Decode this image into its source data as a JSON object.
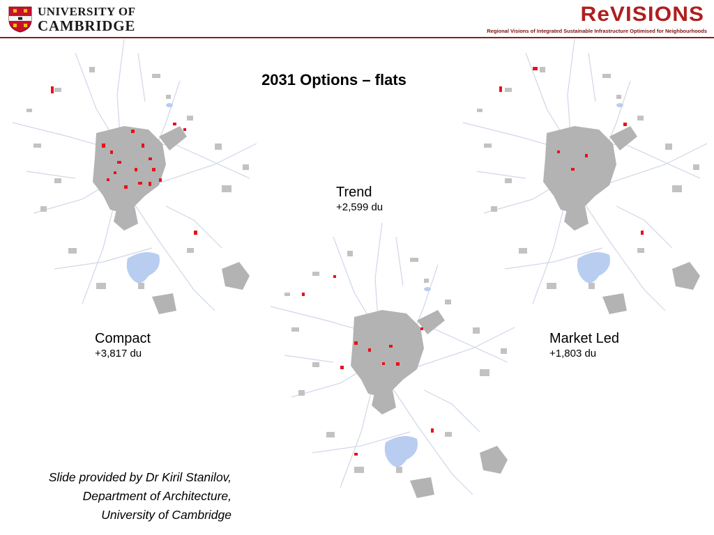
{
  "header": {
    "university_line1": "UNIVERSITY OF",
    "university_line2": "CAMBRIDGE",
    "project_logo": "ReVISIONS",
    "project_tagline": "Regional Visions of Integrated Sustainable Infrastructure Optimised for Neighbourhoods",
    "accent_color": "#8b1a1a"
  },
  "title": "2031 Options – flats",
  "maps": [
    {
      "name": "Compact",
      "value": "+3,817 du"
    },
    {
      "name": "Trend",
      "value": "+2,599 du"
    },
    {
      "name": "Market Led",
      "value": "+1,803 du"
    }
  ],
  "credit": {
    "line1": "Slide provided by Dr Kiril Stanilov,",
    "line2": "Department of Architecture,",
    "line3": "University of Cambridge"
  },
  "colors": {
    "urban": "#b3b3b3",
    "roads": "#cfd6e8",
    "water": "#b8cdf0",
    "new_flats": "#e8121a"
  }
}
